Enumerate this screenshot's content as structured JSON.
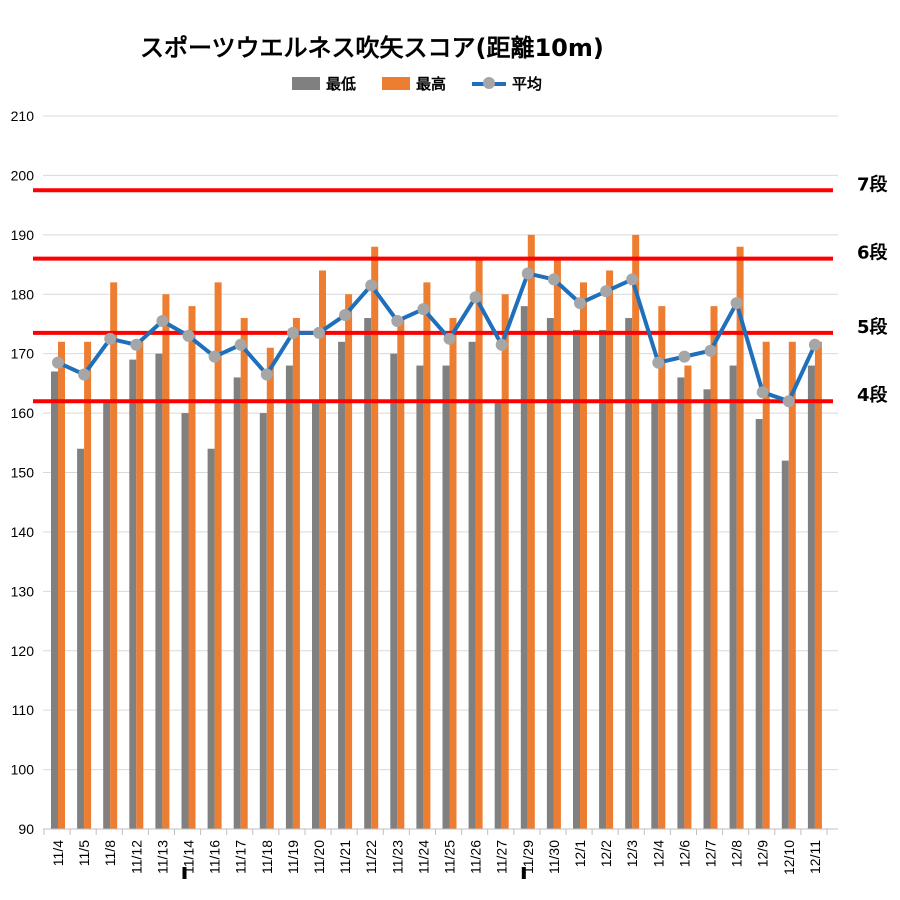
{
  "chart_data": {
    "type": "bar",
    "title": "スポーツウエルネス吹矢スコア(距離10m)",
    "categories": [
      "11/4",
      "11/5",
      "11/8",
      "11/12",
      "11/13",
      "11/14",
      "11/16",
      "11/17",
      "11/18",
      "11/19",
      "11/20",
      "11/21",
      "11/22",
      "11/23",
      "11/24",
      "11/25",
      "11/26",
      "11/27",
      "11/29",
      "11/30",
      "12/1",
      "12/2",
      "12/3",
      "12/4",
      "12/6",
      "12/7",
      "12/8",
      "12/9",
      "12/10",
      "12/11"
    ],
    "marked_categories": [
      "11/14",
      "11/29"
    ],
    "series": [
      {
        "name": "最低",
        "type": "bar",
        "color": "#808080",
        "values": [
          167,
          154,
          162,
          169,
          170,
          160,
          154,
          166,
          160,
          168,
          162,
          172,
          176,
          170,
          168,
          168,
          172,
          162,
          178,
          176,
          174,
          174,
          176,
          162,
          166,
          164,
          168,
          159,
          152,
          168
        ]
      },
      {
        "name": "最高",
        "type": "bar",
        "color": "#ed7d31",
        "values": [
          172,
          172,
          182,
          172,
          180,
          178,
          182,
          176,
          171,
          176,
          184,
          180,
          188,
          176,
          182,
          176,
          186,
          180,
          190,
          186,
          182,
          184,
          190,
          178,
          168,
          178,
          188,
          172,
          172,
          172
        ]
      },
      {
        "name": "平均",
        "type": "line",
        "color": "#1f6fba",
        "marker_color": "#a6a6a6",
        "values": [
          168.5,
          166.5,
          172.5,
          171.5,
          175.5,
          173,
          169.5,
          171.5,
          166.5,
          173.5,
          173.5,
          176.5,
          181.5,
          175.5,
          177.5,
          172.5,
          179.5,
          171.5,
          183.5,
          182.5,
          178.5,
          180.5,
          182.5,
          168.5,
          169.5,
          170.5,
          178.5,
          163.5,
          162,
          171.5
        ]
      }
    ],
    "reference_lines": [
      {
        "label": "7段",
        "value": 197.5,
        "color": "#ff0000"
      },
      {
        "label": "6段",
        "value": 186,
        "color": "#ff0000"
      },
      {
        "label": "5段",
        "value": 173.5,
        "color": "#ff0000"
      },
      {
        "label": "4段",
        "value": 162,
        "color": "#ff0000"
      }
    ],
    "ylim": [
      90,
      210
    ],
    "yticks": [
      90,
      100,
      110,
      120,
      130,
      140,
      150,
      160,
      170,
      180,
      190,
      200,
      210
    ],
    "grid": true,
    "legend_position": "top"
  }
}
